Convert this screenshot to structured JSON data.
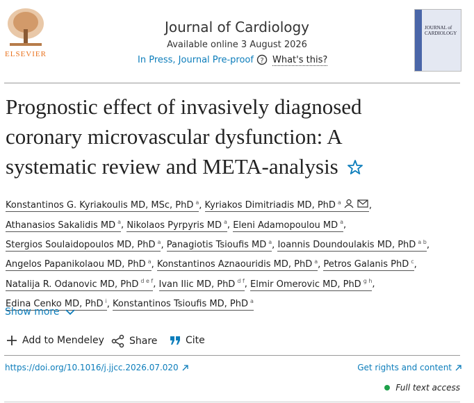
{
  "header": {
    "publisher": "ELSEVIER",
    "journal": "Journal of Cardiology",
    "available": "Available online 3 August 2026",
    "status": "In Press, Journal Pre-proof",
    "help": "What's this?",
    "cover_title": "JOURNAL of CARDIOLOGY"
  },
  "article": {
    "title": "Prognostic effect of invasively diagnosed coronary microvascular dysfunction: A systematic review and META-analysis",
    "author_separator": ",",
    "authors": [
      {
        "name": "Konstantinos G. Kyriakoulis MD, MSc, PhD",
        "sup": "a"
      },
      {
        "name": "Kyriakos Dimitriadis MD, PhD",
        "sup": "a"
      },
      {
        "name": "Athanasios Sakalidis MD",
        "sup": "a"
      },
      {
        "name": "Nikolaos Pyrpyris MD",
        "sup": "a"
      },
      {
        "name": "Eleni Adamopoulou MD",
        "sup": "a"
      },
      {
        "name": "Stergios Soulaidopoulos MD, PhD",
        "sup": "a"
      },
      {
        "name": "Panagiotis Tsioufis MD",
        "sup": "a"
      },
      {
        "name": "Ioannis Doundoulakis MD, PhD",
        "sup": "a b"
      },
      {
        "name": "Angelos Papanikolaou MD, PhD",
        "sup": "a"
      },
      {
        "name": "Konstantinos Aznaouridis MD, PhD",
        "sup": "a"
      },
      {
        "name": "Petros Galanis PhD",
        "sup": "c"
      },
      {
        "name": "Natalija R. Odanovic MD, PhD",
        "sup": "d e f"
      },
      {
        "name": "Ivan Ilic MD, PhD",
        "sup": "d f"
      },
      {
        "name": "Elmir Omerovic MD, PhD",
        "sup": "g h"
      },
      {
        "name": "Edina Cenko MD, PhD",
        "sup": "i"
      },
      {
        "name": "Konstantinos Tsioufis MD, PhD",
        "sup": "a"
      }
    ],
    "show_more": "Show more",
    "actions": [
      "Add to Mendeley",
      "Share",
      "Cite"
    ],
    "doi": "https://doi.org/10.1016/j.jjcc.2026.07.020",
    "rights": "Get rights and content",
    "access": "Full text access"
  }
}
